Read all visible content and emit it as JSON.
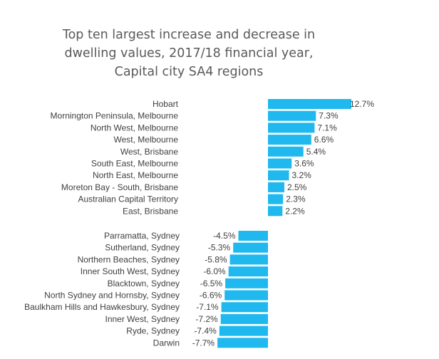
{
  "colors": {
    "bar": "#1fb8ef",
    "text": "#404040",
    "title": "#595959"
  },
  "chart_data": {
    "type": "bar",
    "orientation": "horizontal",
    "title_lines": [
      "Top ten largest increase and decrease in",
      "dwelling values, 2017/18 financial year,",
      "Capital city SA4 regions"
    ],
    "xlabel": "",
    "ylabel": "",
    "axis_visible": false,
    "grid": false,
    "legend": "none",
    "value_suffix": "%",
    "xlim": [
      -7.7,
      12.7
    ],
    "groups": [
      {
        "group": "increase",
        "categories": [
          "Hobart",
          "Mornington Peninsula, Melbourne",
          "North West, Melbourne",
          "West, Melbourne",
          "West, Brisbane",
          "South East, Melbourne",
          "North East, Melbourne",
          "Moreton Bay - South, Brisbane",
          "Australian Capital Territory",
          "East, Brisbane"
        ],
        "values": [
          12.7,
          7.3,
          7.1,
          6.6,
          5.4,
          3.6,
          3.2,
          2.5,
          2.3,
          2.2
        ]
      },
      {
        "group": "decrease",
        "categories": [
          "Parramatta, Sydney",
          "Sutherland, Sydney",
          "Northern Beaches, Sydney",
          "Inner South West, Sydney",
          "Blacktown, Sydney",
          "North Sydney and Hornsby, Sydney",
          "Baulkham Hills and Hawkesbury, Sydney",
          "Inner West, Sydney",
          "Ryde, Sydney",
          "Darwin"
        ],
        "values": [
          -4.5,
          -5.3,
          -5.8,
          -6.0,
          -6.5,
          -6.6,
          -7.1,
          -7.2,
          -7.4,
          -7.7
        ]
      }
    ]
  }
}
